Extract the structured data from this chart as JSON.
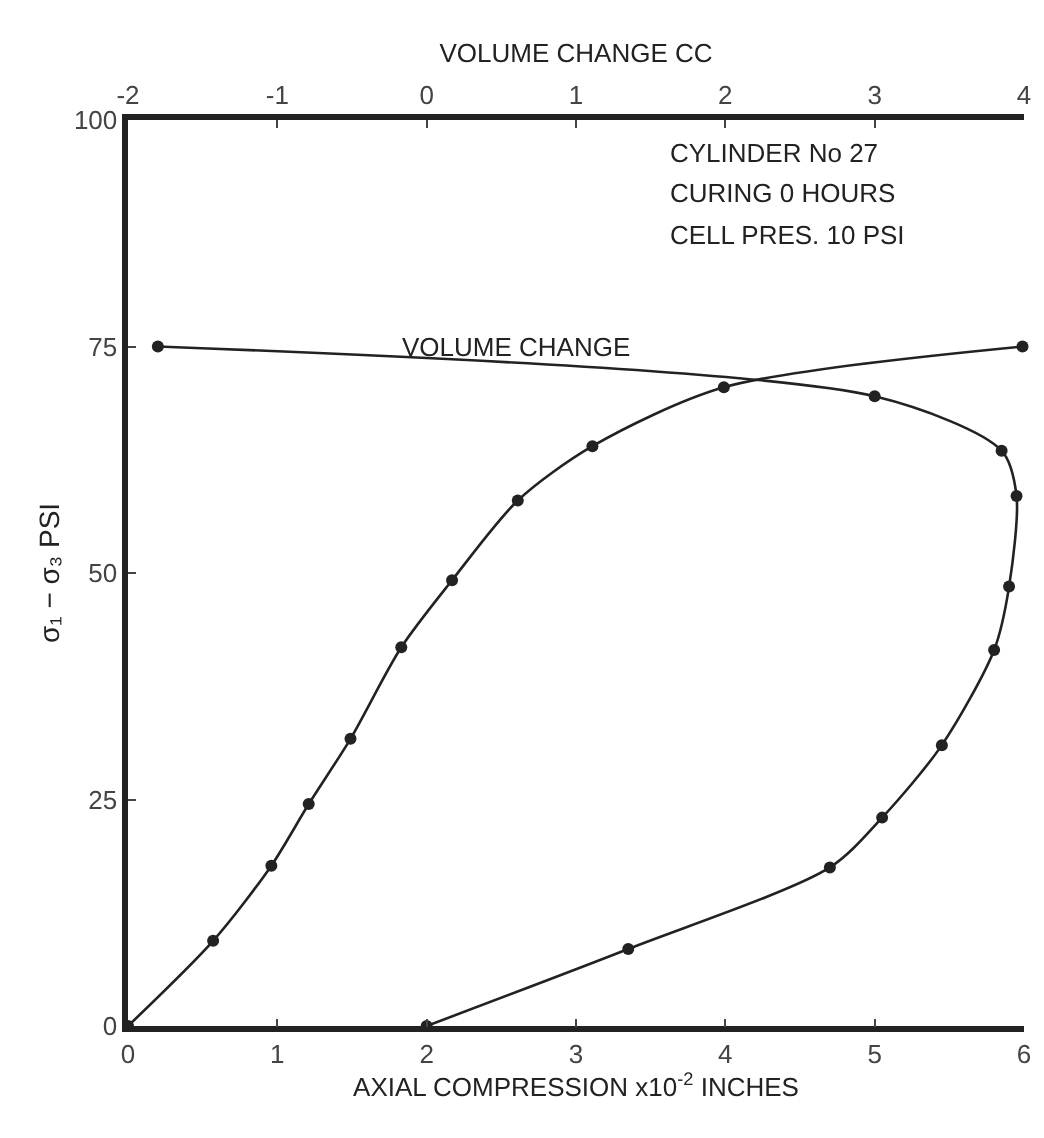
{
  "chart_data": {
    "type": "line",
    "xlabel": "AXIAL COMPRESSION x10$^{-2}$ INCHES",
    "x2label": "VOLUME CHANGE CC",
    "ylabel": "σ₁ − σ₃ PSI",
    "annotations": [
      "CYLINDER No 27",
      "CURING 0 HOURS",
      "CELL PRES. 10 PSI"
    ],
    "xlim": [
      0,
      6
    ],
    "xticks": [
      0,
      1,
      2,
      3,
      4,
      5,
      6
    ],
    "x2lim": [
      -2,
      4
    ],
    "x2ticks": [
      -2,
      -1,
      0,
      1,
      2,
      3,
      4
    ],
    "ylim": [
      0,
      100
    ],
    "yticks": [
      0,
      25,
      50,
      75,
      100
    ],
    "grid": false,
    "legend": false,
    "marker": "circle",
    "line_style": "solid",
    "series": [
      {
        "color": "#222222",
        "x": [
          0,
          0.57,
          0.96,
          1.21,
          1.49,
          1.83,
          2.17,
          2.61,
          3.11,
          3.99,
          5.99
        ],
        "values": [
          0,
          9.4,
          17.7,
          24.5,
          31.7,
          41.8,
          49.2,
          58,
          64,
          70.5,
          75
        ]
      },
      {
        "name": "VOLUME CHANGE",
        "axis": "x2",
        "color": "#222222",
        "x": [
          0,
          1.35,
          2.7,
          3.05,
          3.45,
          3.8,
          3.9,
          3.95,
          3.85,
          3.0,
          -1.8
        ],
        "values": [
          0,
          8.5,
          17.5,
          23,
          31,
          41.5,
          48.5,
          58.5,
          63.5,
          69.5,
          75
        ]
      }
    ]
  }
}
